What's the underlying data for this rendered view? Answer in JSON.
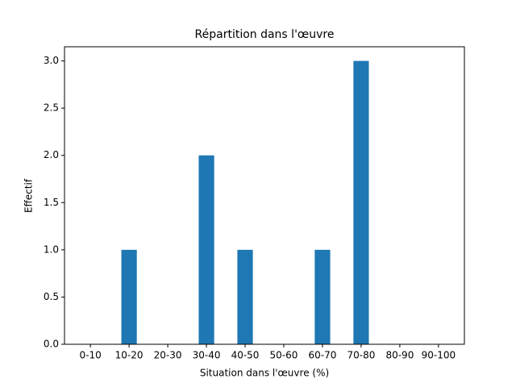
{
  "chart_data": {
    "type": "bar",
    "title": "Répartition dans l'œuvre",
    "xlabel": "Situation dans l'œuvre (%)",
    "ylabel": "Effectif",
    "categories": [
      "0-10",
      "10-20",
      "20-30",
      "30-40",
      "40-50",
      "50-60",
      "60-70",
      "70-80",
      "80-90",
      "90-100"
    ],
    "values": [
      0,
      1,
      0,
      2,
      1,
      0,
      1,
      3,
      0,
      0
    ],
    "color": "#1f77b4",
    "ylim": [
      0,
      3.15
    ],
    "yticks": [
      {
        "value": 0,
        "label": "0.0"
      },
      {
        "value": 0.5,
        "label": "0.5"
      },
      {
        "value": 1,
        "label": "1.0"
      },
      {
        "value": 1.5,
        "label": "1.5"
      },
      {
        "value": 2,
        "label": "2.0"
      },
      {
        "value": 2.5,
        "label": "2.5"
      },
      {
        "value": 3,
        "label": "3.0"
      }
    ]
  }
}
